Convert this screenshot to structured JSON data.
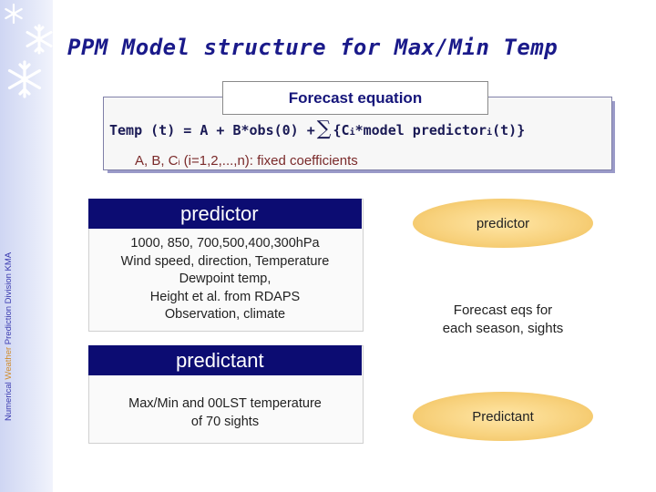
{
  "slide": {
    "title": "PPM Model structure for Max/Min Temp",
    "sidebar_caption_part1": "Numerical ",
    "sidebar_caption_part2": "Weather",
    "sidebar_caption_part3": " Prediction Division  KMA",
    "decorations": [
      "snowflake-icon",
      "snowflake-icon",
      "snowflake-icon"
    ]
  },
  "equation_box": {
    "tab_label": "Forecast equation",
    "eq_part1": "Temp (t) = A + B*obs(0) +",
    "eq_sigma": "∑",
    "eq_part2": "{C",
    "eq_sub_i": "i",
    "eq_part3": "*model predictor",
    "eq_sub_i2": "i",
    "eq_part4": "(t)}",
    "coef_part1": "A, B, C",
    "coef_sub": "i",
    "coef_part2": " (i=1,2,...,n): fixed coefficients"
  },
  "left_column": {
    "predictor_header": "predictor",
    "predictor_text": "1000, 850, 700,500,400,300hPa\nWind speed, direction, Temperature\nDewpoint temp,\nHeight et al. from RDAPS\nObservation, climate",
    "predictand_header": "predictant",
    "predictand_text": "Max/Min and 00LST temperature\nof 70 sights"
  },
  "right_column": {
    "ellipse_top": "predictor",
    "middle_text": "Forecast eqs for\neach season, sights",
    "ellipse_bottom": "Predictant"
  },
  "colors": {
    "title": "#1a1a8a",
    "header_bg": "#0c0c72",
    "ellipse": "#f7d07a",
    "sidebar_accent": "#d08a2a"
  }
}
